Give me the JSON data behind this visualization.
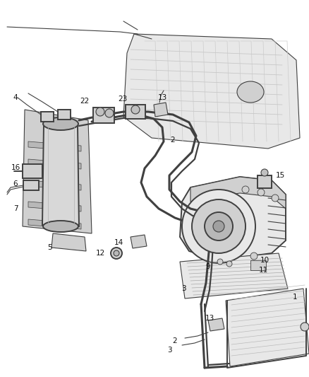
{
  "bg_color": "#ffffff",
  "lc": "#404040",
  "lc2": "#606060",
  "fill_light": "#e8e8e8",
  "fill_mid": "#d0d0d0",
  "fill_dark": "#b8b8b8",
  "lw_main": 1.4,
  "lw_thin": 0.8,
  "lw_hose": 2.2,
  "lw_hose2": 1.6,
  "label_fs": 7.5,
  "label_color": "#111111",
  "figsize": [
    4.38,
    5.33
  ],
  "dpi": 100
}
